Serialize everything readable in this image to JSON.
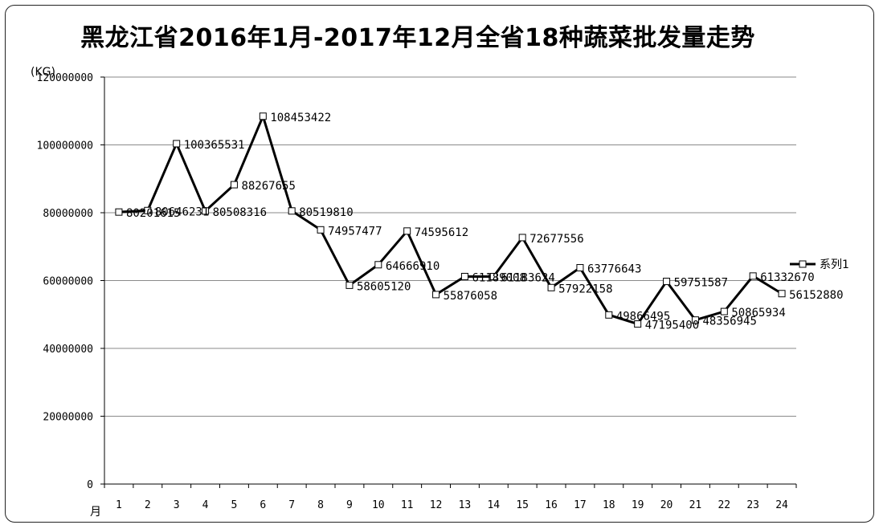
{
  "chart_data": {
    "type": "line",
    "title": "黑龙江省2016年1月-2017年12月全省18种蔬菜批发量走势",
    "ylabel": "(KG)",
    "xlabel": "月",
    "ylim": [
      0,
      120000000
    ],
    "yticks": [
      "0",
      "20000000",
      "40000000",
      "60000000",
      "80000000",
      "100000000",
      "120000000"
    ],
    "categories": [
      "1",
      "2",
      "3",
      "4",
      "5",
      "6",
      "7",
      "8",
      "9",
      "10",
      "11",
      "12",
      "13",
      "14",
      "15",
      "16",
      "17",
      "18",
      "19",
      "20",
      "21",
      "22",
      "23",
      "24"
    ],
    "series": [
      {
        "name": "系列1",
        "values": [
          80201615,
          80646231,
          100365531,
          80508316,
          88267655,
          108453422,
          80519810,
          74957477,
          58605120,
          64666910,
          74595612,
          55876058,
          61189008,
          61183624,
          72677556,
          57922158,
          63776643,
          49866495,
          47195400,
          59751587,
          48356945,
          50865934,
          61332670,
          56152880
        ],
        "labels": [
          "80201615",
          "80646231",
          "100365531",
          "80508316",
          "88267655",
          "108453422",
          "80519810",
          "74957477",
          "58605120",
          "64666910",
          "74595612",
          "55876058",
          "61189008",
          "61183624",
          "72677556",
          "57922158",
          "63776643",
          "49866495",
          "47195400",
          "59751587",
          "48356945",
          "50865934",
          "61332670",
          "56152880"
        ]
      }
    ],
    "grid": true,
    "legend": "right"
  }
}
